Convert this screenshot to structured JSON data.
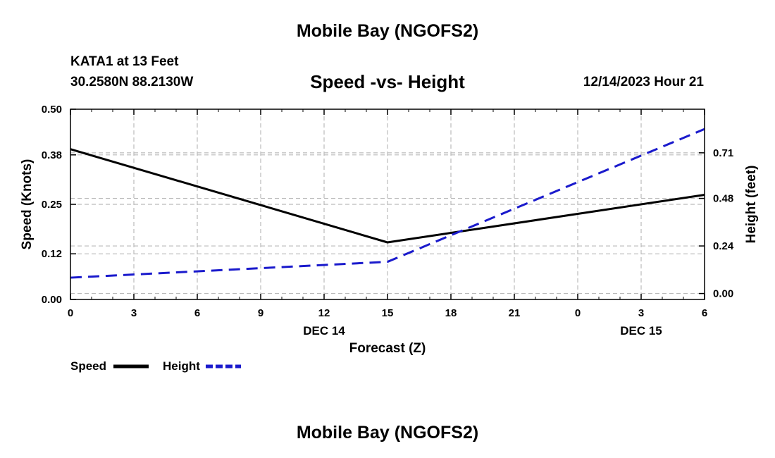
{
  "page": {
    "title": "Mobile Bay (NGOFS2)",
    "footer_title": "Mobile Bay (NGOFS2)",
    "station": "KATA1 at 13 Feet",
    "coordinates": "30.2580N  88.2130W",
    "datetime": "12/14/2023 Hour 21"
  },
  "chart_data": {
    "type": "line",
    "title": "Speed -vs- Height",
    "xlabel": "Forecast (Z)",
    "ylabel": "Speed (Knots)",
    "y2label": "Height (feet)",
    "x_ticks": [
      "0",
      "3",
      "6",
      "9",
      "12",
      "15",
      "18",
      "21",
      "0",
      "3",
      "6"
    ],
    "x_day_labels": [
      {
        "label": "DEC 14",
        "at_hour": 12
      },
      {
        "label": "DEC 15",
        "at_hour": 27
      }
    ],
    "xlim": [
      0,
      30
    ],
    "ylim": [
      0,
      0.5
    ],
    "y_ticks": [
      0.0,
      0.12,
      0.25,
      0.38,
      0.5
    ],
    "y_tick_labels": [
      "0.00",
      "0.12",
      "0.25",
      "0.38",
      "0.50"
    ],
    "y2lim": [
      -0.03,
      0.93
    ],
    "y2_ticks": [
      0.0,
      0.24,
      0.48,
      0.71
    ],
    "y2_tick_labels": [
      "0.00",
      "0.24",
      "0.48",
      "0.71"
    ],
    "grid": true,
    "series": [
      {
        "name": "Speed",
        "axis": "left",
        "color": "#000000",
        "dash": "solid",
        "x": [
          0,
          15,
          30
        ],
        "values": [
          0.395,
          0.15,
          0.275
        ]
      },
      {
        "name": "Height",
        "axis": "right",
        "color": "#1a1acc",
        "dash": "dashed",
        "x": [
          0,
          15,
          30
        ],
        "values": [
          0.08,
          0.16,
          0.83
        ]
      }
    ],
    "legend": {
      "position": "bottom-left",
      "items": [
        "Speed",
        "Height"
      ]
    }
  }
}
